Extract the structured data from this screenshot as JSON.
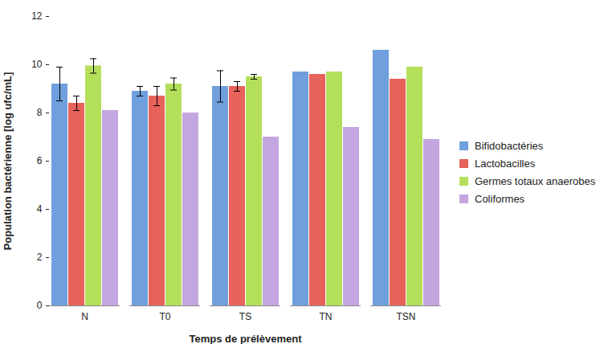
{
  "chart_data": {
    "type": "bar",
    "x_label": "Temps de prélèvement",
    "y_label": "Population bactérienne [log ufc/mL]",
    "categories": [
      "N",
      "T0",
      "TS",
      "TN",
      "TSN"
    ],
    "series": [
      {
        "name": "Bifidobactéries",
        "color": "#6f9fdd",
        "values": [
          9.2,
          8.9,
          9.1,
          9.7,
          10.6
        ],
        "errors": [
          0.7,
          0.2,
          0.65,
          null,
          null
        ]
      },
      {
        "name": "Lactobacilles",
        "color": "#e8625c",
        "values": [
          8.4,
          8.7,
          9.1,
          9.6,
          9.4
        ],
        "errors": [
          0.3,
          0.4,
          0.2,
          null,
          null
        ]
      },
      {
        "name": "Germes totaux anaerobes",
        "color": "#b4df5a",
        "values": [
          9.95,
          9.2,
          9.5,
          9.7,
          9.9
        ],
        "errors": [
          0.3,
          0.25,
          0.1,
          null,
          null
        ]
      },
      {
        "name": "Coliformes",
        "color": "#c3a6e0",
        "values": [
          8.1,
          8.0,
          7.0,
          7.4,
          6.9
        ],
        "errors": [
          null,
          null,
          null,
          null,
          null
        ]
      }
    ],
    "ylim": [
      0,
      12
    ],
    "yticks": [
      0,
      2,
      4,
      6,
      8,
      10,
      12
    ],
    "grid": false,
    "legend": "right"
  }
}
